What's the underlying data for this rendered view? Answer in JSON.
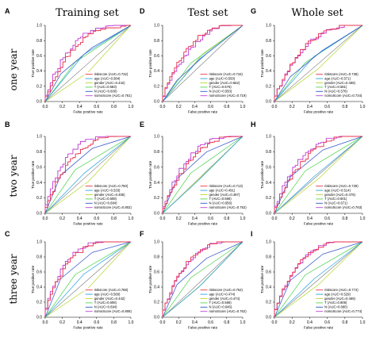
{
  "figure": {
    "columns": [
      "Training set",
      "Test set",
      "Whole set"
    ],
    "rows": [
      "one year",
      "two year",
      "three year"
    ],
    "letters": [
      [
        "A",
        "D",
        "G"
      ],
      [
        "B",
        "E",
        "H"
      ],
      [
        "C",
        "F",
        "I"
      ]
    ]
  },
  "colors": {
    "riskscore": "#e8334f",
    "age": "#2fa3e6",
    "gender": "#b8d83a",
    "T": "#54d454",
    "N": "#3656c9",
    "nomoScore": "#c043d6",
    "diagonal": "#7a7a7a"
  },
  "chart_data": [
    {
      "panel": "A",
      "type": "line",
      "title": "Training set",
      "row_label": "one year",
      "xlabel": "False positive rate",
      "ylabel": "True positive rate",
      "xlim": [
        0,
        1
      ],
      "ylim": [
        0,
        1
      ],
      "xticks": [
        "0.0",
        "0.2",
        "0.4",
        "0.6",
        "0.8",
        "1.0"
      ],
      "yticks": [
        "0.0",
        "0.2",
        "0.4",
        "0.6",
        "0.8",
        "1.0"
      ],
      "legend_position": "bottom-right",
      "series": [
        {
          "name": "riskscore (AUC=0.732)",
          "auc": 0.732
        },
        {
          "name": "age (AUC=0.584)",
          "auc": 0.584
        },
        {
          "name": "gender (AUC=0.442)",
          "auc": 0.442
        },
        {
          "name": "T (AUC=0.583)",
          "auc": 0.583
        },
        {
          "name": "N (AUC=0.600)",
          "auc": 0.6
        },
        {
          "name": "nomoScore (AUC=0.761)",
          "auc": 0.761
        }
      ]
    },
    {
      "panel": "D",
      "type": "line",
      "title": "Test set",
      "row_label": "one year",
      "xlabel": "False positive rate",
      "ylabel": "True positive rate",
      "xlim": [
        0,
        1
      ],
      "ylim": [
        0,
        1
      ],
      "xticks": [
        "0.0",
        "0.2",
        "0.4",
        "0.6",
        "0.8",
        "1.0"
      ],
      "yticks": [
        "0.0",
        "0.2",
        "0.4",
        "0.6",
        "0.8",
        "1.0"
      ],
      "legend_position": "bottom-right",
      "series": [
        {
          "name": "riskscore (AUC=0.744)",
          "auc": 0.744
        },
        {
          "name": "age (AUC=0.550)",
          "auc": 0.55
        },
        {
          "name": "gender (AUC=0.562)",
          "auc": 0.562
        },
        {
          "name": "T (AUC=0.576)",
          "auc": 0.576
        },
        {
          "name": "N (AUC=0.550)",
          "auc": 0.55
        },
        {
          "name": "nomoScore (AUC=0.719)",
          "auc": 0.719
        }
      ]
    },
    {
      "panel": "G",
      "type": "line",
      "title": "Whole set",
      "row_label": "one year",
      "xlabel": "False positive rate",
      "ylabel": "True positive rate",
      "xlim": [
        0,
        1
      ],
      "ylim": [
        0,
        1
      ],
      "xticks": [
        "0.0",
        "0.2",
        "0.4",
        "0.6",
        "0.8",
        "1.0"
      ],
      "yticks": [
        "0.0",
        "0.2",
        "0.4",
        "0.6",
        "0.8",
        "1.0"
      ],
      "legend_position": "bottom-right",
      "series": [
        {
          "name": "riskscore (AUC=0.736)",
          "auc": 0.736
        },
        {
          "name": "age (AUC=0.571)",
          "auc": 0.571
        },
        {
          "name": "gender (AUC=0.466)",
          "auc": 0.466
        },
        {
          "name": "T (AUC=0.581)",
          "auc": 0.581
        },
        {
          "name": "N (AUC=0.578)",
          "auc": 0.578
        },
        {
          "name": "nomoScore (AUC=0.734)",
          "auc": 0.734
        }
      ]
    },
    {
      "panel": "B",
      "type": "line",
      "title": "Training set",
      "row_label": "two year",
      "xlabel": "False positive rate",
      "ylabel": "True positive rate",
      "xlim": [
        0,
        1
      ],
      "ylim": [
        0,
        1
      ],
      "xticks": [
        "0.0",
        "0.2",
        "0.4",
        "0.6",
        "0.8",
        "1.0"
      ],
      "yticks": [
        "0.0",
        "0.2",
        "0.4",
        "0.6",
        "0.8",
        "1.0"
      ],
      "legend_position": "bottom-right",
      "series": [
        {
          "name": "riskscore (AUC=0.750)",
          "auc": 0.75
        },
        {
          "name": "age (AUC=0.533)",
          "auc": 0.533
        },
        {
          "name": "gender (AUC=0.455)",
          "auc": 0.455
        },
        {
          "name": "T (AUC=0.608)",
          "auc": 0.608
        },
        {
          "name": "N (AUC=0.684)",
          "auc": 0.684
        },
        {
          "name": "nomoScore (AUC=0.802)",
          "auc": 0.802
        }
      ]
    },
    {
      "panel": "E",
      "type": "line",
      "title": "Test set",
      "row_label": "two year",
      "xlabel": "False positive rate",
      "ylabel": "True positive rate",
      "xlim": [
        0,
        1
      ],
      "ylim": [
        0,
        1
      ],
      "xticks": [
        "0.0",
        "0.2",
        "0.4",
        "0.6",
        "0.8",
        "1.0"
      ],
      "yticks": [
        "0.0",
        "0.2",
        "0.4",
        "0.6",
        "0.8",
        "1.0"
      ],
      "legend_position": "bottom-right",
      "series": [
        {
          "name": "riskscore (AUC=0.713)",
          "auc": 0.713
        },
        {
          "name": "age (AUC=0.491)",
          "auc": 0.491
        },
        {
          "name": "gender (AUC=0.497)",
          "auc": 0.497
        },
        {
          "name": "T (AUC=0.586)",
          "auc": 0.586
        },
        {
          "name": "N (AUC=0.656)",
          "auc": 0.656
        },
        {
          "name": "nomoScore (AUC=0.752)",
          "auc": 0.752
        }
      ]
    },
    {
      "panel": "H",
      "type": "line",
      "title": "Whole set",
      "row_label": "two year",
      "xlabel": "False positive rate",
      "ylabel": "True positive rate",
      "xlim": [
        0,
        1
      ],
      "ylim": [
        0,
        1
      ],
      "xticks": [
        "0.0",
        "0.2",
        "0.4",
        "0.6",
        "0.8",
        "1.0"
      ],
      "yticks": [
        "0.0",
        "0.2",
        "0.4",
        "0.6",
        "0.8",
        "1.0"
      ],
      "legend_position": "bottom-right",
      "series": [
        {
          "name": "riskscore (AUC=0.729)",
          "auc": 0.729
        },
        {
          "name": "age (AUC=0.514)",
          "auc": 0.514
        },
        {
          "name": "gender (AUC=0.475)",
          "auc": 0.475
        },
        {
          "name": "T (AUC=0.601)",
          "auc": 0.601
        },
        {
          "name": "N (AUC=0.671)",
          "auc": 0.671
        },
        {
          "name": "nomoScore (AUC=0.763)",
          "auc": 0.763
        }
      ]
    },
    {
      "panel": "C",
      "type": "line",
      "title": "Training set",
      "row_label": "three year",
      "xlabel": "False positive rate",
      "ylabel": "True positive rate",
      "xlim": [
        0,
        1
      ],
      "ylim": [
        0,
        1
      ],
      "xticks": [
        "0.0",
        "0.2",
        "0.4",
        "0.6",
        "0.8",
        "1.0"
      ],
      "yticks": [
        "0.0",
        "0.2",
        "0.4",
        "0.6",
        "0.8",
        "1.0"
      ],
      "legend_position": "bottom-right",
      "series": [
        {
          "name": "riskscore (AUC=0.788)",
          "auc": 0.788
        },
        {
          "name": "age (AUC=0.560)",
          "auc": 0.56
        },
        {
          "name": "gender (AUC=0.442)",
          "auc": 0.442
        },
        {
          "name": "T (AUC=0.608)",
          "auc": 0.608
        },
        {
          "name": "N (AUC=0.694)",
          "auc": 0.694
        },
        {
          "name": "nomoScore (AUC=0.808)",
          "auc": 0.808
        }
      ]
    },
    {
      "panel": "F",
      "type": "line",
      "title": "Test set",
      "row_label": "three year",
      "xlabel": "False positive rate",
      "ylabel": "True positive rate",
      "xlim": [
        0,
        1
      ],
      "ylim": [
        0,
        1
      ],
      "xticks": [
        "0.0",
        "0.2",
        "0.4",
        "0.6",
        "0.8",
        "1.0"
      ],
      "yticks": [
        "0.0",
        "0.2",
        "0.4",
        "0.6",
        "0.8",
        "1.0"
      ],
      "legend_position": "bottom-right",
      "series": [
        {
          "name": "riskscore (AUC=0.764)",
          "auc": 0.764
        },
        {
          "name": "age (AUC=0.474)",
          "auc": 0.474
        },
        {
          "name": "gender (AUC=0.474)",
          "auc": 0.474
        },
        {
          "name": "T (AUC=0.586)",
          "auc": 0.586
        },
        {
          "name": "N (AUC=0.646)",
          "auc": 0.646
        },
        {
          "name": "nomoScore (AUC=0.762)",
          "auc": 0.762
        }
      ]
    },
    {
      "panel": "I",
      "type": "line",
      "title": "Whole set",
      "row_label": "three year",
      "xlabel": "False positive rate",
      "ylabel": "True positive rate",
      "xlim": [
        0,
        1
      ],
      "ylim": [
        0,
        1
      ],
      "xticks": [
        "0.0",
        "0.2",
        "0.4",
        "0.6",
        "0.8",
        "1.0"
      ],
      "yticks": [
        "0.0",
        "0.2",
        "0.4",
        "0.6",
        "0.8",
        "1.0"
      ],
      "legend_position": "bottom-right",
      "series": [
        {
          "name": "riskscore (AUC=0.774)",
          "auc": 0.774
        },
        {
          "name": "age (AUC=0.529)",
          "auc": 0.529
        },
        {
          "name": "gender (AUC=0.466)",
          "auc": 0.466
        },
        {
          "name": "T (AUC=0.606)",
          "auc": 0.606
        },
        {
          "name": "N (AUC=0.680)",
          "auc": 0.68
        },
        {
          "name": "nomoScore (AUC=0.774)",
          "auc": 0.774
        }
      ]
    }
  ]
}
